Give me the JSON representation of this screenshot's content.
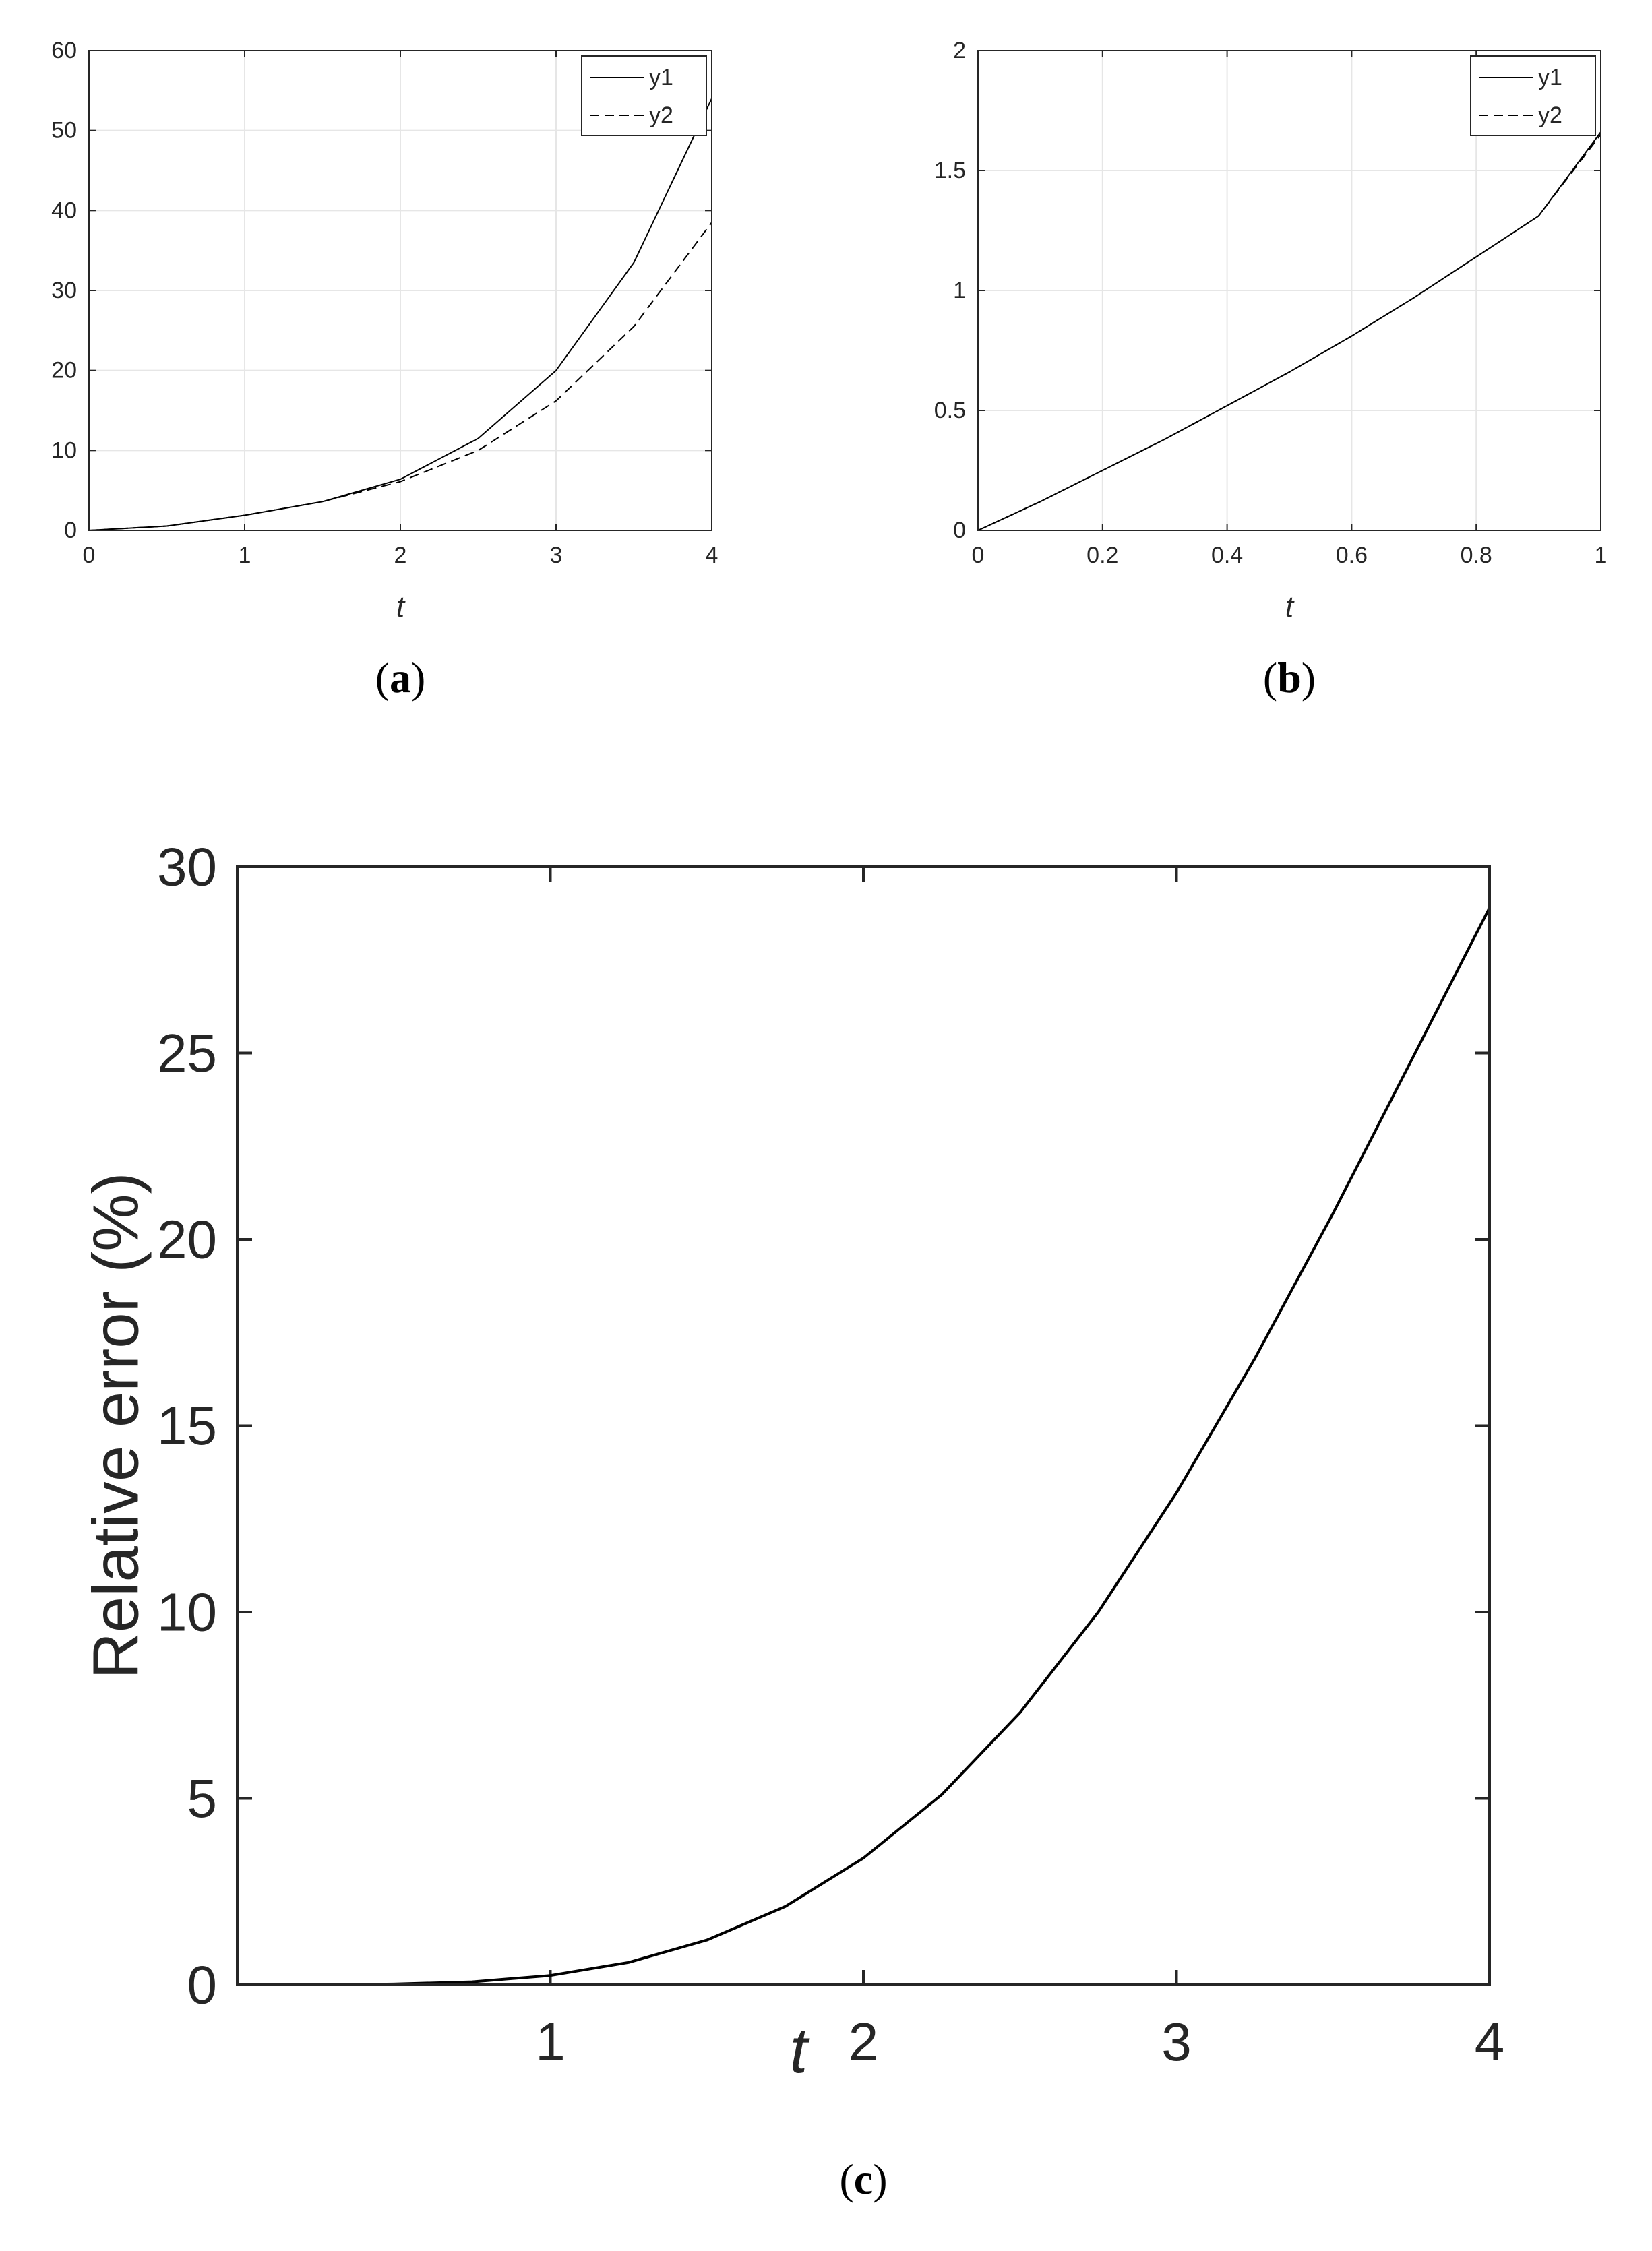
{
  "chart_data": [
    {
      "id": "a",
      "type": "line",
      "panel_label_open": "(",
      "panel_label_letter": "a",
      "panel_label_close": ")",
      "xlabel": "t",
      "ylabel": "",
      "xlim": [
        0,
        4
      ],
      "ylim": [
        0,
        60
      ],
      "xticks": [
        0,
        1,
        2,
        3,
        4
      ],
      "yticks": [
        0,
        10,
        20,
        30,
        40,
        50,
        60
      ],
      "grid": true,
      "legend_position": "top-right",
      "series": [
        {
          "name": "y1",
          "style": "solid",
          "x": [
            0,
            0.5,
            1,
            1.5,
            2,
            2.5,
            3,
            3.5,
            4
          ],
          "y": [
            0,
            0.55,
            1.9,
            3.6,
            6.4,
            11.5,
            20.0,
            33.5,
            54.0
          ]
        },
        {
          "name": "y2",
          "style": "dashed",
          "x": [
            0,
            0.5,
            1,
            1.5,
            2,
            2.5,
            3,
            3.5,
            4
          ],
          "y": [
            0,
            0.55,
            1.9,
            3.6,
            6.1,
            10.0,
            16.2,
            25.5,
            38.5
          ]
        }
      ]
    },
    {
      "id": "b",
      "type": "line",
      "panel_label_open": "(",
      "panel_label_letter": "b",
      "panel_label_close": ")",
      "xlabel": "t",
      "ylabel": "",
      "xlim": [
        0,
        1
      ],
      "ylim": [
        0,
        2
      ],
      "xticks": [
        0,
        0.2,
        0.4,
        0.6,
        0.8,
        1
      ],
      "yticks": [
        0,
        0.5,
        1,
        1.5,
        2
      ],
      "grid": true,
      "legend_position": "top-right",
      "series": [
        {
          "name": "y1",
          "style": "solid",
          "x": [
            0,
            0.1,
            0.2,
            0.3,
            0.4,
            0.5,
            0.6,
            0.7,
            0.8,
            0.9,
            1.0
          ],
          "y": [
            0,
            0.12,
            0.25,
            0.38,
            0.52,
            0.66,
            0.81,
            0.97,
            1.14,
            1.31,
            1.66
          ]
        },
        {
          "name": "y2",
          "style": "dashed",
          "x": [
            0,
            0.1,
            0.2,
            0.3,
            0.4,
            0.5,
            0.6,
            0.7,
            0.8,
            0.9,
            1.0
          ],
          "y": [
            0,
            0.12,
            0.25,
            0.38,
            0.52,
            0.66,
            0.81,
            0.97,
            1.14,
            1.31,
            1.65
          ]
        }
      ]
    },
    {
      "id": "c",
      "type": "line",
      "panel_label_open": "(",
      "panel_label_letter": "c",
      "panel_label_close": ")",
      "xlabel": "t",
      "ylabel": "Relative error (%)",
      "xlim": [
        0,
        4
      ],
      "ylim": [
        0,
        30
      ],
      "xticks": [
        1,
        2,
        3,
        4
      ],
      "yticks": [
        0,
        5,
        10,
        15,
        20,
        25,
        30
      ],
      "grid": false,
      "series": [
        {
          "name": "",
          "style": "solid",
          "x": [
            0.3,
            0.5,
            0.75,
            1.0,
            1.25,
            1.5,
            1.75,
            2.0,
            2.25,
            2.5,
            2.75,
            3.0,
            3.25,
            3.5,
            3.75,
            4.0
          ],
          "y": [
            0,
            0.02,
            0.08,
            0.25,
            0.6,
            1.2,
            2.1,
            3.4,
            5.1,
            7.3,
            10.0,
            13.2,
            16.8,
            20.7,
            24.8,
            28.9
          ]
        }
      ]
    }
  ]
}
